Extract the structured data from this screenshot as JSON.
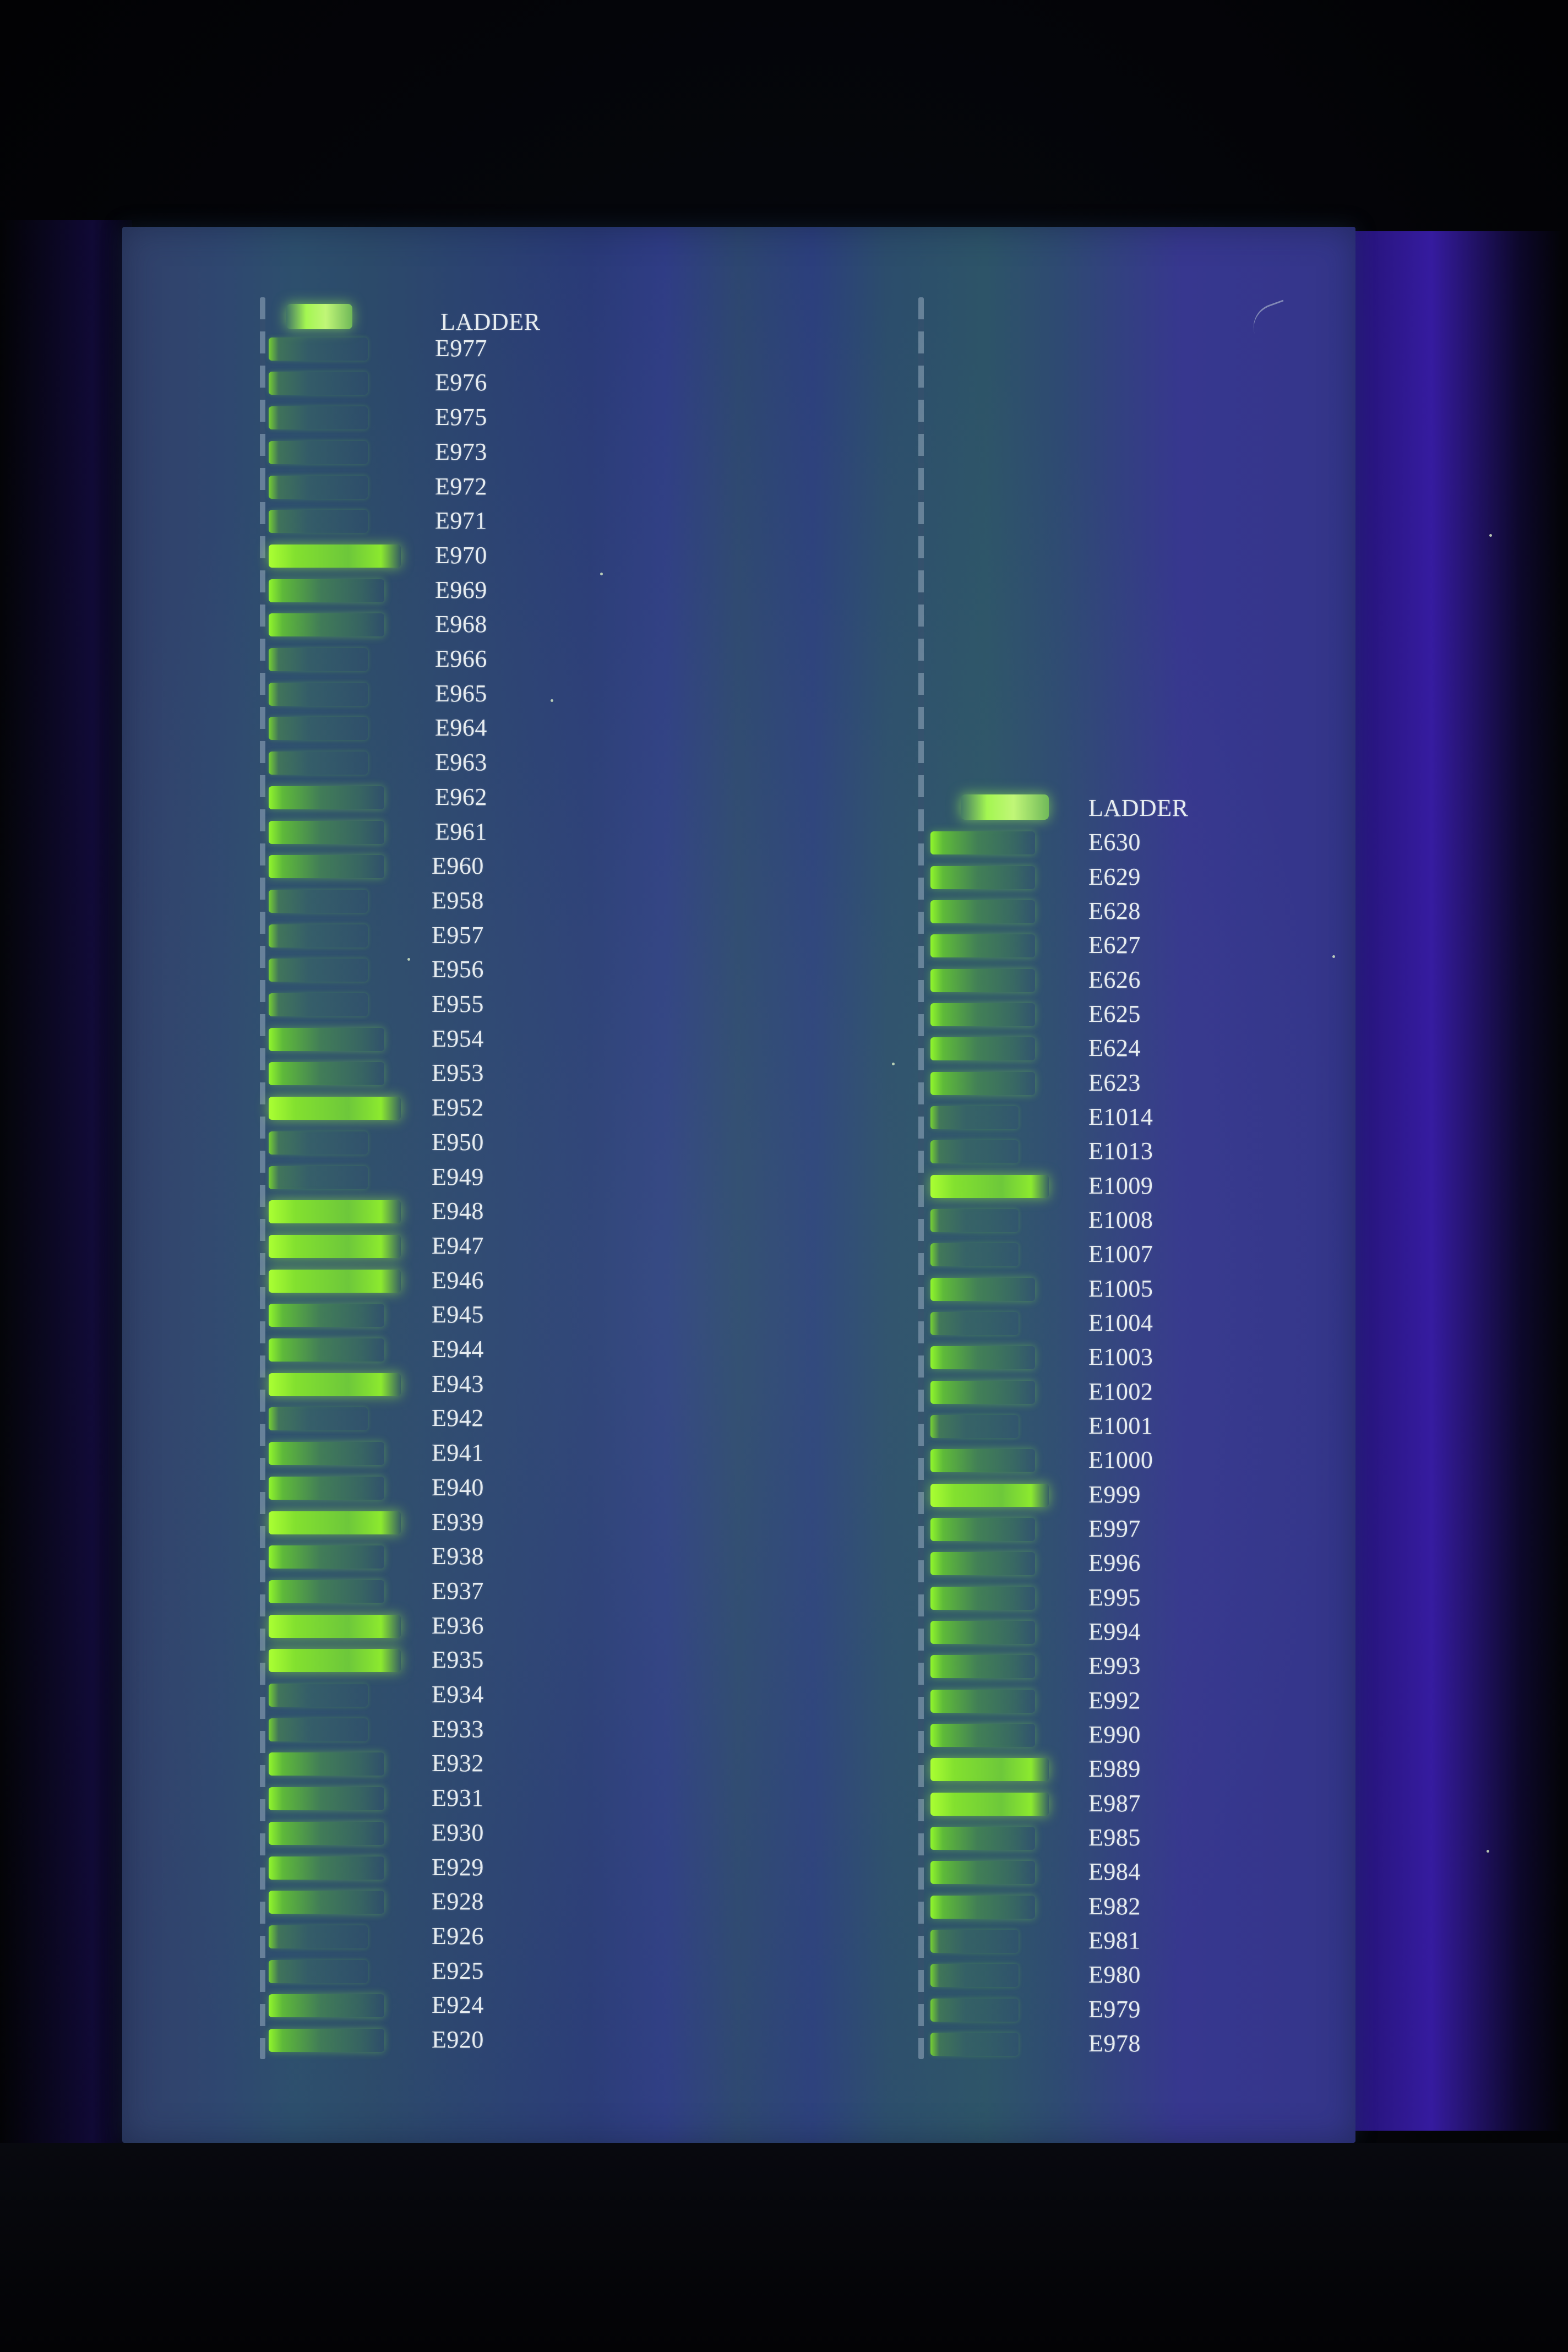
{
  "gel_photo": {
    "left_column": {
      "ladder_label": "LADDER",
      "lanes": [
        "E977",
        "E976",
        "E975",
        "E973",
        "E972",
        "E971",
        "E970",
        "E969",
        "E968",
        "E966",
        "E965",
        "E964",
        "E963",
        "E962",
        "E961",
        "E960",
        "E958",
        "E957",
        "E956",
        "E955",
        "E954",
        "E953",
        "E952",
        "E950",
        "E949",
        "E948",
        "E947",
        "E946",
        "E945",
        "E944",
        "E943",
        "E942",
        "E941",
        "E940",
        "E939",
        "E938",
        "E937",
        "E936",
        "E935",
        "E934",
        "E933",
        "E932",
        "E931",
        "E930",
        "E929",
        "E928",
        "E926",
        "E925",
        "E924",
        "E920"
      ],
      "band_intensity": [
        1,
        1,
        1,
        1,
        1,
        1,
        3,
        2,
        2,
        1,
        1,
        1,
        1,
        2,
        2,
        2,
        1,
        1,
        1,
        1,
        2,
        2,
        3,
        1,
        1,
        3,
        3,
        3,
        2,
        2,
        3,
        1,
        2,
        2,
        3,
        2,
        2,
        3,
        3,
        1,
        1,
        2,
        2,
        2,
        2,
        2,
        1,
        1,
        2,
        2
      ]
    },
    "right_column": {
      "ladder_label": "LADDER",
      "lanes": [
        "E630",
        "E629",
        "E628",
        "E627",
        "E626",
        "E625",
        "E624",
        "E623",
        "E1014",
        "E1013",
        "E1009",
        "E1008",
        "E1007",
        "E1005",
        "E1004",
        "E1003",
        "E1002",
        "E1001",
        "E1000",
        "E999",
        "E997",
        "E996",
        "E995",
        "E994",
        "E993",
        "E992",
        "E990",
        "E989",
        "E987",
        "E985",
        "E984",
        "E982",
        "E981",
        "E980",
        "E979",
        "E978"
      ],
      "band_intensity": [
        2,
        2,
        2,
        2,
        2,
        2,
        2,
        2,
        1,
        1,
        3,
        1,
        1,
        2,
        1,
        2,
        2,
        1,
        2,
        3,
        2,
        2,
        2,
        2,
        2,
        2,
        2,
        3,
        3,
        2,
        2,
        2,
        1,
        1,
        1,
        1
      ]
    },
    "colors": {
      "band_green": "#96ff28",
      "uv_violet": "#4623d2",
      "gel_teal": "#2d4f6d",
      "label_white": "#e6ecf0"
    }
  }
}
